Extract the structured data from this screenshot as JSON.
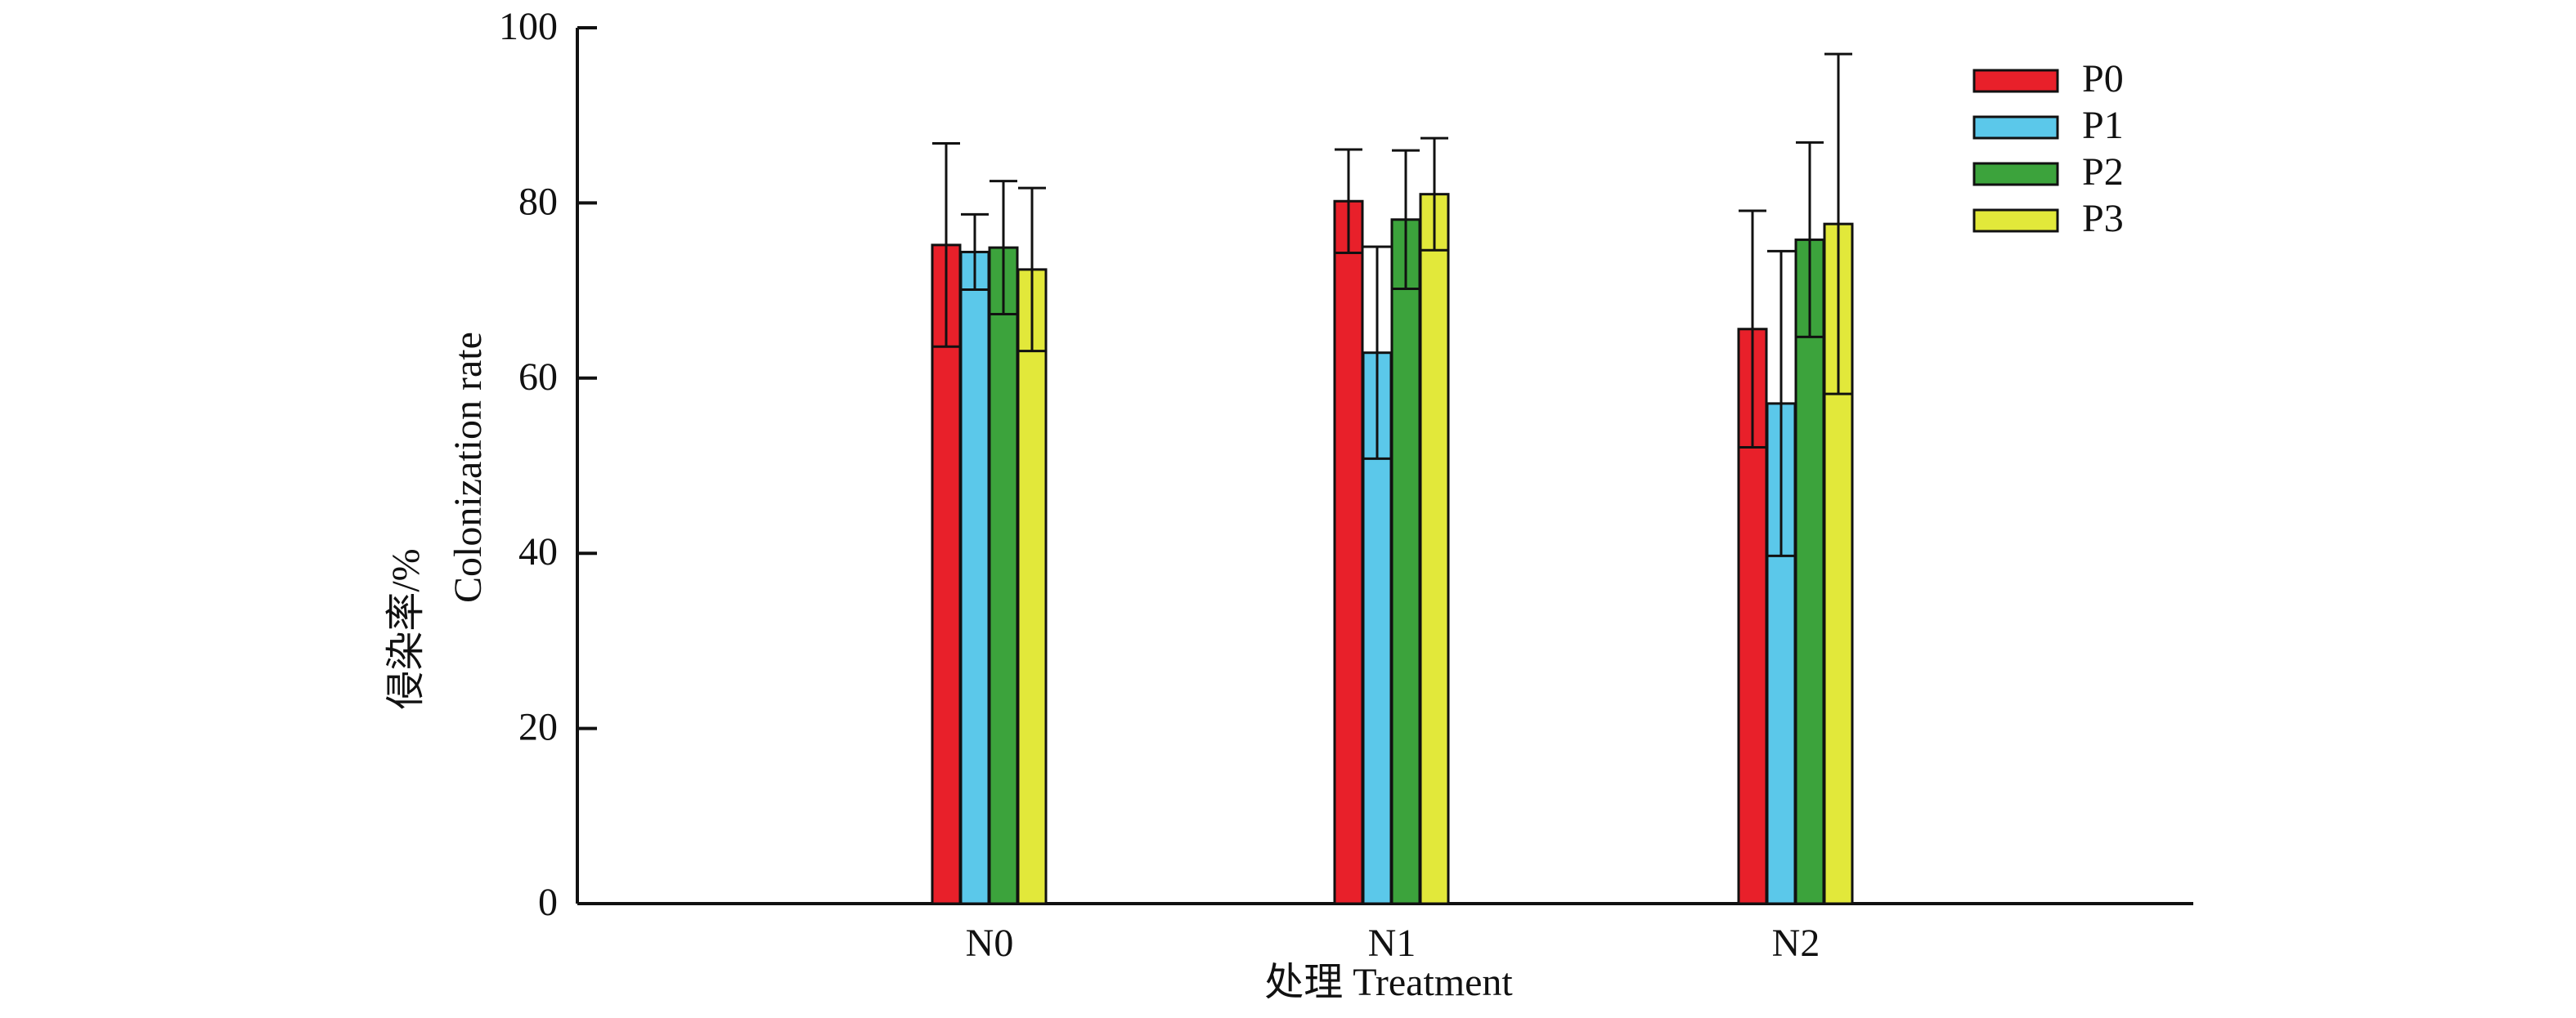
{
  "chart_data": {
    "type": "bar",
    "categories": [
      "N0",
      "N1",
      "N2"
    ],
    "series": [
      {
        "name": "P0",
        "color": "#E8202A",
        "values": [
          75.2,
          80.2,
          65.6
        ],
        "error": [
          11.6,
          5.9,
          13.5
        ]
      },
      {
        "name": "P1",
        "color": "#5BC8EA",
        "values": [
          74.4,
          62.9,
          57.1
        ],
        "error": [
          4.3,
          12.1,
          17.4
        ]
      },
      {
        "name": "P2",
        "color": "#3CA33C",
        "values": [
          74.9,
          78.1,
          75.8
        ],
        "error": [
          7.6,
          7.9,
          11.1
        ]
      },
      {
        "name": "P3",
        "color": "#E2E83A",
        "values": [
          72.4,
          81.0,
          77.6
        ],
        "error": [
          9.3,
          6.4,
          19.4
        ]
      }
    ],
    "ylim": [
      0,
      100
    ],
    "yticks": [
      "0",
      "20",
      "40",
      "60",
      "80",
      "100"
    ],
    "xlabel": "处理 Treatment",
    "ylabel_top": "侵染率/%",
    "ylabel_bottom": "Colonization rate",
    "legend_position": "top-right",
    "grid": false
  }
}
